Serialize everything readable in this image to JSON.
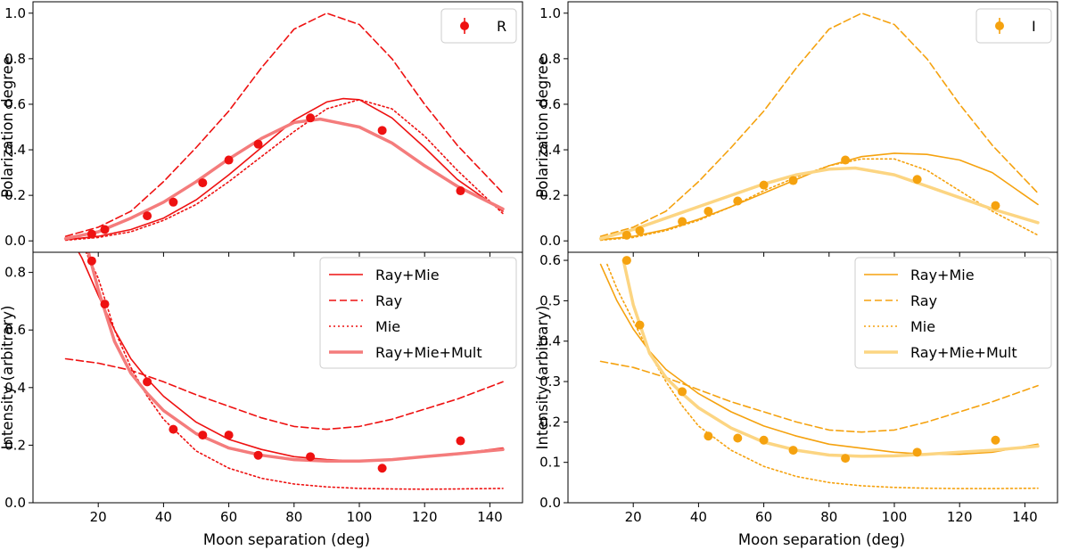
{
  "chart_data": [
    {
      "type": "line",
      "band": "R",
      "color": "#ee1111",
      "light_color": "#f47c7c",
      "ylabel": "Polarization degree",
      "xlim": [
        0,
        150
      ],
      "ylim": [
        -0.05,
        1.05
      ],
      "xticks": [
        "20",
        "40",
        "60",
        "80",
        "100",
        "120",
        "140"
      ],
      "yticks": [
        "0.0",
        "0.2",
        "0.4",
        "0.6",
        "0.8",
        "1.0"
      ],
      "legend": {
        "position": "upper right",
        "entries": [
          "R"
        ]
      },
      "points": {
        "x": [
          18,
          22,
          35,
          43,
          52,
          60,
          69,
          85,
          107,
          131
        ],
        "y": [
          0.03,
          0.05,
          0.11,
          0.17,
          0.255,
          0.355,
          0.425,
          0.54,
          0.485,
          0.22
        ]
      },
      "series": [
        {
          "name": "Ray+Mie",
          "style": "solid",
          "x": [
            10,
            20,
            30,
            40,
            50,
            60,
            70,
            80,
            90,
            95,
            100,
            110,
            120,
            130,
            144
          ],
          "y": [
            0.005,
            0.02,
            0.05,
            0.1,
            0.18,
            0.29,
            0.41,
            0.53,
            0.61,
            0.625,
            0.62,
            0.54,
            0.41,
            0.27,
            0.13
          ]
        },
        {
          "name": "Ray",
          "style": "dashed",
          "x": [
            10,
            20,
            30,
            40,
            50,
            60,
            70,
            80,
            90,
            100,
            110,
            120,
            130,
            144
          ],
          "y": [
            0.02,
            0.06,
            0.13,
            0.26,
            0.41,
            0.57,
            0.76,
            0.93,
            1.0,
            0.95,
            0.8,
            0.6,
            0.42,
            0.21
          ]
        },
        {
          "name": "Mie",
          "style": "dotted",
          "x": [
            10,
            20,
            30,
            40,
            50,
            60,
            70,
            80,
            90,
            100,
            110,
            120,
            130,
            144
          ],
          "y": [
            0.003,
            0.015,
            0.04,
            0.09,
            0.16,
            0.26,
            0.37,
            0.48,
            0.58,
            0.62,
            0.58,
            0.46,
            0.31,
            0.12
          ]
        },
        {
          "name": "Ray+Mie+Mult",
          "style": "thick",
          "x": [
            10,
            20,
            30,
            40,
            50,
            60,
            70,
            80,
            88,
            100,
            110,
            120,
            130,
            144
          ],
          "y": [
            0.01,
            0.04,
            0.1,
            0.17,
            0.26,
            0.36,
            0.45,
            0.52,
            0.535,
            0.5,
            0.43,
            0.33,
            0.24,
            0.14
          ]
        }
      ]
    },
    {
      "type": "line",
      "band": "I",
      "color": "#f5a20f",
      "light_color": "#fcd582",
      "ylabel": "Polarization degree",
      "xlim": [
        0,
        150
      ],
      "ylim": [
        -0.05,
        1.05
      ],
      "xticks": [
        "20",
        "40",
        "60",
        "80",
        "100",
        "120",
        "140"
      ],
      "yticks": [
        "0.0",
        "0.2",
        "0.4",
        "0.6",
        "0.8",
        "1.0"
      ],
      "legend": {
        "position": "upper right",
        "entries": [
          "I"
        ]
      },
      "points": {
        "x": [
          18,
          22,
          35,
          43,
          52,
          60,
          69,
          85,
          107,
          131
        ],
        "y": [
          0.025,
          0.045,
          0.085,
          0.13,
          0.175,
          0.245,
          0.265,
          0.355,
          0.27,
          0.155
        ]
      },
      "series": [
        {
          "name": "Ray+Mie",
          "style": "solid",
          "x": [
            10,
            20,
            30,
            40,
            50,
            60,
            70,
            80,
            90,
            100,
            110,
            120,
            130,
            144
          ],
          "y": [
            0.005,
            0.02,
            0.05,
            0.095,
            0.15,
            0.21,
            0.27,
            0.33,
            0.37,
            0.385,
            0.38,
            0.355,
            0.3,
            0.16
          ]
        },
        {
          "name": "Ray",
          "style": "dashed",
          "x": [
            10,
            20,
            30,
            40,
            50,
            60,
            70,
            80,
            90,
            100,
            110,
            120,
            130,
            144
          ],
          "y": [
            0.02,
            0.06,
            0.13,
            0.26,
            0.41,
            0.57,
            0.76,
            0.93,
            1.0,
            0.95,
            0.8,
            0.6,
            0.42,
            0.21
          ]
        },
        {
          "name": "Mie",
          "style": "dotted",
          "x": [
            10,
            20,
            30,
            40,
            50,
            60,
            70,
            80,
            90,
            100,
            110,
            120,
            130,
            144
          ],
          "y": [
            0.003,
            0.015,
            0.045,
            0.09,
            0.15,
            0.22,
            0.28,
            0.33,
            0.36,
            0.36,
            0.31,
            0.22,
            0.13,
            0.025
          ]
        },
        {
          "name": "Ray+Mie+Mult",
          "style": "thick",
          "x": [
            10,
            20,
            30,
            40,
            50,
            60,
            70,
            80,
            88,
            100,
            110,
            120,
            130,
            144
          ],
          "y": [
            0.01,
            0.05,
            0.1,
            0.15,
            0.2,
            0.25,
            0.29,
            0.315,
            0.32,
            0.29,
            0.24,
            0.19,
            0.14,
            0.08
          ]
        }
      ]
    },
    {
      "type": "line",
      "band": "R",
      "color": "#ee1111",
      "light_color": "#f47c7c",
      "xlabel": "Moon separation (deg)",
      "ylabel": "Intensity (arbitrary)",
      "xlim": [
        0,
        150
      ],
      "ylim": [
        0.0,
        0.87
      ],
      "xticks": [
        "20",
        "40",
        "60",
        "80",
        "100",
        "120",
        "140"
      ],
      "yticks": [
        "0.0",
        "0.2",
        "0.4",
        "0.6",
        "0.8"
      ],
      "legend": {
        "position": "upper right",
        "entries": [
          "Ray+Mie",
          "Ray",
          "Mie",
          "Ray+Mie+Mult"
        ]
      },
      "points": {
        "x": [
          18,
          22,
          35,
          43,
          52,
          60,
          69,
          85,
          107,
          131
        ],
        "y": [
          0.84,
          0.69,
          0.42,
          0.255,
          0.235,
          0.235,
          0.165,
          0.16,
          0.12,
          0.215
        ]
      },
      "series": [
        {
          "name": "Ray+Mie",
          "style": "solid",
          "x": [
            10,
            15,
            20,
            25,
            30,
            35,
            40,
            50,
            60,
            70,
            80,
            90,
            100,
            110,
            120,
            130,
            144
          ],
          "y": [
            0.95,
            0.85,
            0.72,
            0.6,
            0.5,
            0.43,
            0.37,
            0.28,
            0.22,
            0.185,
            0.16,
            0.15,
            0.145,
            0.15,
            0.16,
            0.17,
            0.19
          ]
        },
        {
          "name": "Ray",
          "style": "dashed",
          "x": [
            10,
            20,
            30,
            40,
            50,
            60,
            70,
            80,
            90,
            100,
            110,
            120,
            130,
            144
          ],
          "y": [
            0.5,
            0.485,
            0.46,
            0.42,
            0.375,
            0.335,
            0.295,
            0.265,
            0.255,
            0.265,
            0.29,
            0.325,
            0.36,
            0.42
          ]
        },
        {
          "name": "Mie",
          "style": "dotted",
          "x": [
            15,
            20,
            25,
            30,
            35,
            40,
            50,
            60,
            70,
            80,
            90,
            100,
            110,
            120,
            130,
            144
          ],
          "y": [
            0.9,
            0.78,
            0.6,
            0.47,
            0.37,
            0.29,
            0.18,
            0.12,
            0.085,
            0.065,
            0.055,
            0.05,
            0.048,
            0.047,
            0.048,
            0.05
          ]
        },
        {
          "name": "Ray+Mie+Mult",
          "style": "thick",
          "x": [
            17,
            20,
            25,
            30,
            35,
            40,
            50,
            60,
            70,
            80,
            90,
            100,
            110,
            120,
            130,
            144
          ],
          "y": [
            0.87,
            0.74,
            0.56,
            0.45,
            0.38,
            0.32,
            0.24,
            0.19,
            0.165,
            0.15,
            0.145,
            0.145,
            0.15,
            0.16,
            0.17,
            0.185
          ]
        }
      ]
    },
    {
      "type": "line",
      "band": "I",
      "color": "#f5a20f",
      "light_color": "#fcd582",
      "xlabel": "Moon separation (deg)",
      "ylabel": "Intensity (arbitrary)",
      "xlim": [
        0,
        150
      ],
      "ylim": [
        0.0,
        0.62
      ],
      "xticks": [
        "20",
        "40",
        "60",
        "80",
        "100",
        "120",
        "140"
      ],
      "yticks": [
        "0.0",
        "0.1",
        "0.2",
        "0.3",
        "0.4",
        "0.5",
        "0.6"
      ],
      "legend": {
        "position": "upper right",
        "entries": [
          "Ray+Mie",
          "Ray",
          "Mie",
          "Ray+Mie+Mult"
        ]
      },
      "points": {
        "x": [
          18,
          22,
          35,
          43,
          52,
          60,
          69,
          85,
          107,
          131
        ],
        "y": [
          0.6,
          0.44,
          0.275,
          0.165,
          0.16,
          0.155,
          0.13,
          0.11,
          0.125,
          0.155
        ]
      },
      "series": [
        {
          "name": "Ray+Mie",
          "style": "solid",
          "x": [
            10,
            15,
            20,
            25,
            30,
            35,
            40,
            50,
            60,
            70,
            80,
            90,
            100,
            110,
            120,
            130,
            144
          ],
          "y": [
            0.59,
            0.5,
            0.43,
            0.375,
            0.33,
            0.3,
            0.27,
            0.225,
            0.19,
            0.165,
            0.145,
            0.135,
            0.125,
            0.12,
            0.12,
            0.125,
            0.145
          ]
        },
        {
          "name": "Ray",
          "style": "dashed",
          "x": [
            10,
            20,
            30,
            40,
            50,
            60,
            70,
            80,
            90,
            100,
            110,
            120,
            130,
            144
          ],
          "y": [
            0.35,
            0.335,
            0.31,
            0.28,
            0.25,
            0.225,
            0.2,
            0.18,
            0.175,
            0.18,
            0.2,
            0.225,
            0.25,
            0.29
          ]
        },
        {
          "name": "Mie",
          "style": "dotted",
          "x": [
            12,
            15,
            20,
            25,
            30,
            35,
            40,
            50,
            60,
            70,
            80,
            90,
            100,
            110,
            120,
            130,
            144
          ],
          "y": [
            0.59,
            0.53,
            0.45,
            0.37,
            0.3,
            0.24,
            0.19,
            0.13,
            0.09,
            0.065,
            0.05,
            0.042,
            0.038,
            0.036,
            0.035,
            0.035,
            0.036
          ]
        },
        {
          "name": "Ray+Mie+Mult",
          "style": "thick",
          "x": [
            17,
            20,
            25,
            30,
            35,
            40,
            50,
            60,
            70,
            80,
            90,
            100,
            110,
            120,
            130,
            144
          ],
          "y": [
            0.6,
            0.49,
            0.37,
            0.31,
            0.27,
            0.235,
            0.185,
            0.15,
            0.13,
            0.118,
            0.115,
            0.116,
            0.12,
            0.125,
            0.13,
            0.14
          ]
        }
      ]
    }
  ]
}
